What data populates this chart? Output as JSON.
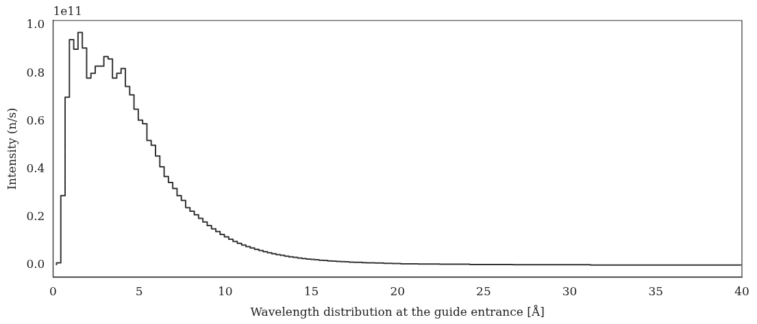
{
  "chart_data": {
    "type": "histogram",
    "xlabel": "Wavelength distribution at the guide entrance [Å]",
    "ylabel": "Intensity (n/s)",
    "annotations": [
      "1e11"
    ],
    "color": "#333333",
    "bins": [
      0.2,
      0.45,
      0.7,
      0.95,
      1.2,
      1.45,
      1.7,
      1.95,
      2.2,
      2.45,
      2.7,
      2.95,
      3.2,
      3.45,
      3.7,
      3.95,
      4.2,
      4.45,
      4.7,
      4.95,
      5.2,
      5.45,
      5.7,
      5.95,
      6.2,
      6.45,
      6.7,
      6.95,
      7.2,
      7.45,
      7.7,
      7.95,
      8.2,
      8.45,
      8.7,
      8.95,
      9.2,
      9.45,
      9.7,
      9.95,
      10.2,
      10.45,
      10.7,
      10.95,
      11.2,
      11.45,
      11.7,
      11.95,
      12.2,
      12.45,
      12.7,
      12.95,
      13.2,
      13.45,
      13.7,
      13.95,
      14.2,
      14.45,
      14.7,
      14.95,
      15.2,
      15.45,
      15.7,
      15.95,
      16.2,
      16.45,
      16.7,
      16.95,
      17.2,
      17.45,
      17.7,
      17.95,
      18.2,
      18.45,
      18.7,
      18.95,
      19.2,
      19.45,
      19.7,
      19.95,
      20.2,
      20.45,
      20.7,
      20.95,
      21.2,
      21.45,
      21.7,
      21.95,
      22.2,
      22.45,
      22.7,
      22.95,
      23.2,
      23.45,
      23.7,
      23.95,
      24.2,
      24.45,
      24.7,
      24.95,
      25.2,
      25.45,
      25.7,
      25.95,
      26.2,
      26.45,
      26.7,
      26.95,
      27.2,
      27.45,
      27.7,
      27.95,
      28.2,
      28.45,
      28.7,
      28.95,
      29.2,
      29.45,
      29.7,
      29.95,
      30.2,
      30.45,
      30.7,
      30.95,
      31.2,
      31.45,
      31.7,
      31.95,
      32.2,
      32.45,
      32.7,
      32.95,
      33.2,
      33.45,
      33.7,
      33.95,
      34.2,
      34.45,
      34.7,
      34.95,
      35.2,
      35.45,
      35.7,
      35.95,
      36.2,
      36.45,
      36.7,
      36.95,
      37.2,
      37.45,
      37.7,
      37.95,
      38.2,
      38.45,
      38.7,
      38.95,
      39.2,
      39.45,
      39.7,
      39.95
    ],
    "values": [
      0.01,
      0.29,
      0.7,
      0.94,
      0.9,
      0.97,
      0.905,
      0.78,
      0.8,
      0.83,
      0.83,
      0.87,
      0.86,
      0.78,
      0.8,
      0.82,
      0.745,
      0.71,
      0.65,
      0.605,
      0.59,
      0.52,
      0.5,
      0.455,
      0.41,
      0.37,
      0.345,
      0.32,
      0.29,
      0.27,
      0.24,
      0.225,
      0.21,
      0.195,
      0.18,
      0.165,
      0.152,
      0.14,
      0.128,
      0.118,
      0.108,
      0.099,
      0.091,
      0.084,
      0.078,
      0.072,
      0.066,
      0.061,
      0.056,
      0.052,
      0.048,
      0.044,
      0.041,
      0.038,
      0.035,
      0.033,
      0.03,
      0.028,
      0.026,
      0.024,
      0.023,
      0.021,
      0.02,
      0.018,
      0.017,
      0.016,
      0.015,
      0.014,
      0.013,
      0.012,
      0.012,
      0.011,
      0.01,
      0.01,
      0.009,
      0.009,
      0.008,
      0.008,
      0.007,
      0.007,
      0.006,
      0.006,
      0.006,
      0.006,
      0.005,
      0.005,
      0.005,
      0.005,
      0.005,
      0.004,
      0.004,
      0.004,
      0.004,
      0.004,
      0.004,
      0.004,
      0.003,
      0.003,
      0.003,
      0.003,
      0.003,
      0.003,
      0.003,
      0.003,
      0.003,
      0.003,
      0.002,
      0.002,
      0.002,
      0.002,
      0.002,
      0.002,
      0.002,
      0.002,
      0.002,
      0.002,
      0.002,
      0.002,
      0.002,
      0.002,
      0.002,
      0.002,
      0.002,
      0.002,
      0.001,
      0.001,
      0.001,
      0.001,
      0.001,
      0.001,
      0.001,
      0.001,
      0.001,
      0.001,
      0.001,
      0.001,
      0.001,
      0.001,
      0.001,
      0.001,
      0.001,
      0.001,
      0.001,
      0.001,
      0.001,
      0.001,
      0.001,
      0.001,
      0.001,
      0.001,
      0.001,
      0.001,
      0.001,
      0.001,
      0.001,
      0.001,
      0.001,
      0.001,
      0.001
    ],
    "xlim": [
      0,
      40
    ],
    "xticks": [
      0,
      5,
      10,
      15,
      20,
      25,
      30,
      35,
      40
    ],
    "ylim": [
      -0.049,
      1.02
    ],
    "yticks": [
      {
        "value": 0,
        "label": "0.0"
      },
      {
        "value": 0.2,
        "label": "0.2"
      },
      {
        "value": 0.4,
        "label": "0.4"
      },
      {
        "value": 0.6,
        "label": "0.6"
      },
      {
        "value": 0.8,
        "label": "0.8"
      },
      {
        "value": 1,
        "label": "1.0"
      }
    ],
    "grid": false,
    "legend": false
  }
}
